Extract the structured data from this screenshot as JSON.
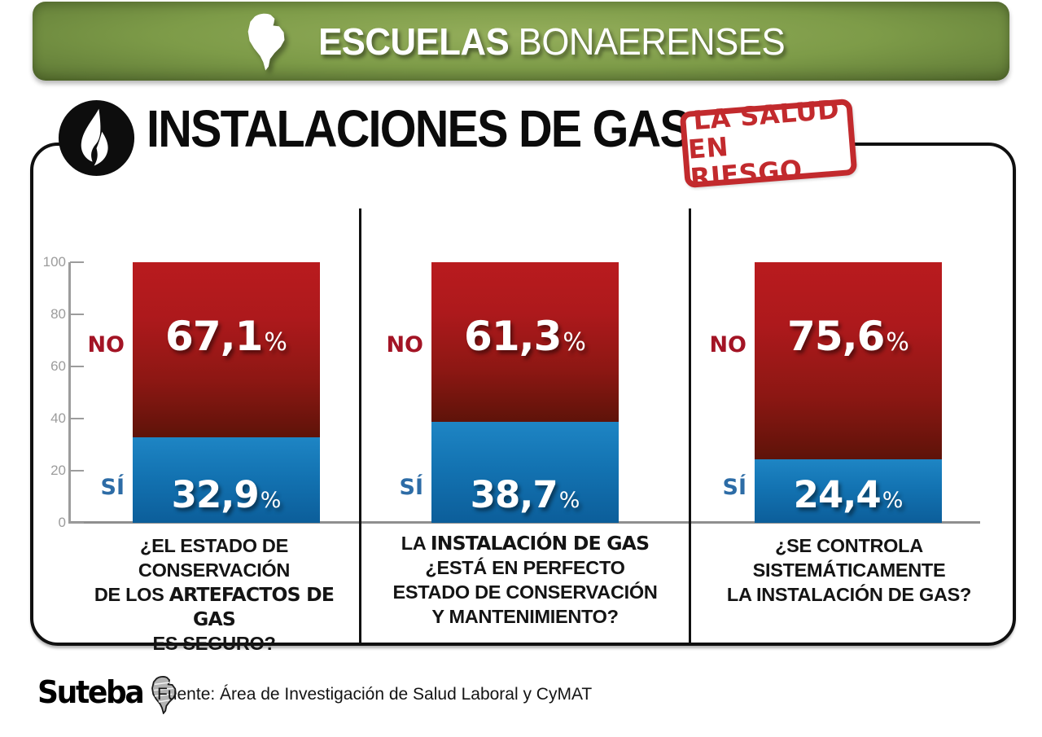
{
  "banner": {
    "brand_bold": "ESCUELAS",
    "brand_light": "BONAERENSES",
    "background_green": "#7d9b48"
  },
  "title": {
    "text": "INSTALACIONES DE GAS"
  },
  "stamp": {
    "line1": "LA SALUD",
    "line2": "EN RIESGO",
    "color": "#c22a2d"
  },
  "chart_data": {
    "type": "bar",
    "stacked": true,
    "unit": "%",
    "ylim": [
      0,
      100
    ],
    "yticks": [
      0,
      20,
      40,
      60,
      80,
      100
    ],
    "grid": false,
    "legend_position": "left-of-bars",
    "categories": [
      "¿El estado de conservación de los artefactos de gas es seguro?",
      "La instalación de gas ¿está en perfecto estado de conservación y mantenimiento?",
      "¿Se controla sistemáticamente la instalación de gas?"
    ],
    "series": [
      {
        "name": "NO",
        "values": [
          67.1,
          61.3,
          75.6
        ],
        "color_top": "#b91b1e",
        "color_bottom": "#5e1309",
        "label_color": "#a31425"
      },
      {
        "name": "SÍ",
        "values": [
          32.9,
          38.7,
          24.4
        ],
        "color_top": "#1e85c4",
        "color_bottom": "#0c5e9a",
        "label_color": "#2d6ca6"
      }
    ]
  },
  "columns": [
    {
      "no_value": "67,1",
      "si_value": "32,9",
      "question": {
        "l1": "¿EL ESTADO DE CONSERVACIÓN",
        "l2a": "DE LOS ",
        "l2b": "ARTEFACTOS DE GAS",
        "l3": "ES SEGURO?"
      }
    },
    {
      "no_value": "61,3",
      "si_value": "38,7",
      "question": {
        "l1a": "LA ",
        "l1b": "INSTALACIÓN DE GAS",
        "l2": "¿ESTÁ EN PERFECTO",
        "l3": "ESTADO DE CONSERVACIÓN",
        "l4": "Y MANTENIMIENTO?"
      }
    },
    {
      "no_value": "75,6",
      "si_value": "24,4",
      "question": {
        "l1": "¿SE CONTROLA",
        "l2": "SISTEMÁTICAMENTE",
        "l3": "LA INSTALACIÓN DE GAS?"
      }
    }
  ],
  "footer": {
    "logo_text": "Suteba",
    "source": "Fuente: Área de Investigación de Salud Laboral y CyMAT"
  }
}
